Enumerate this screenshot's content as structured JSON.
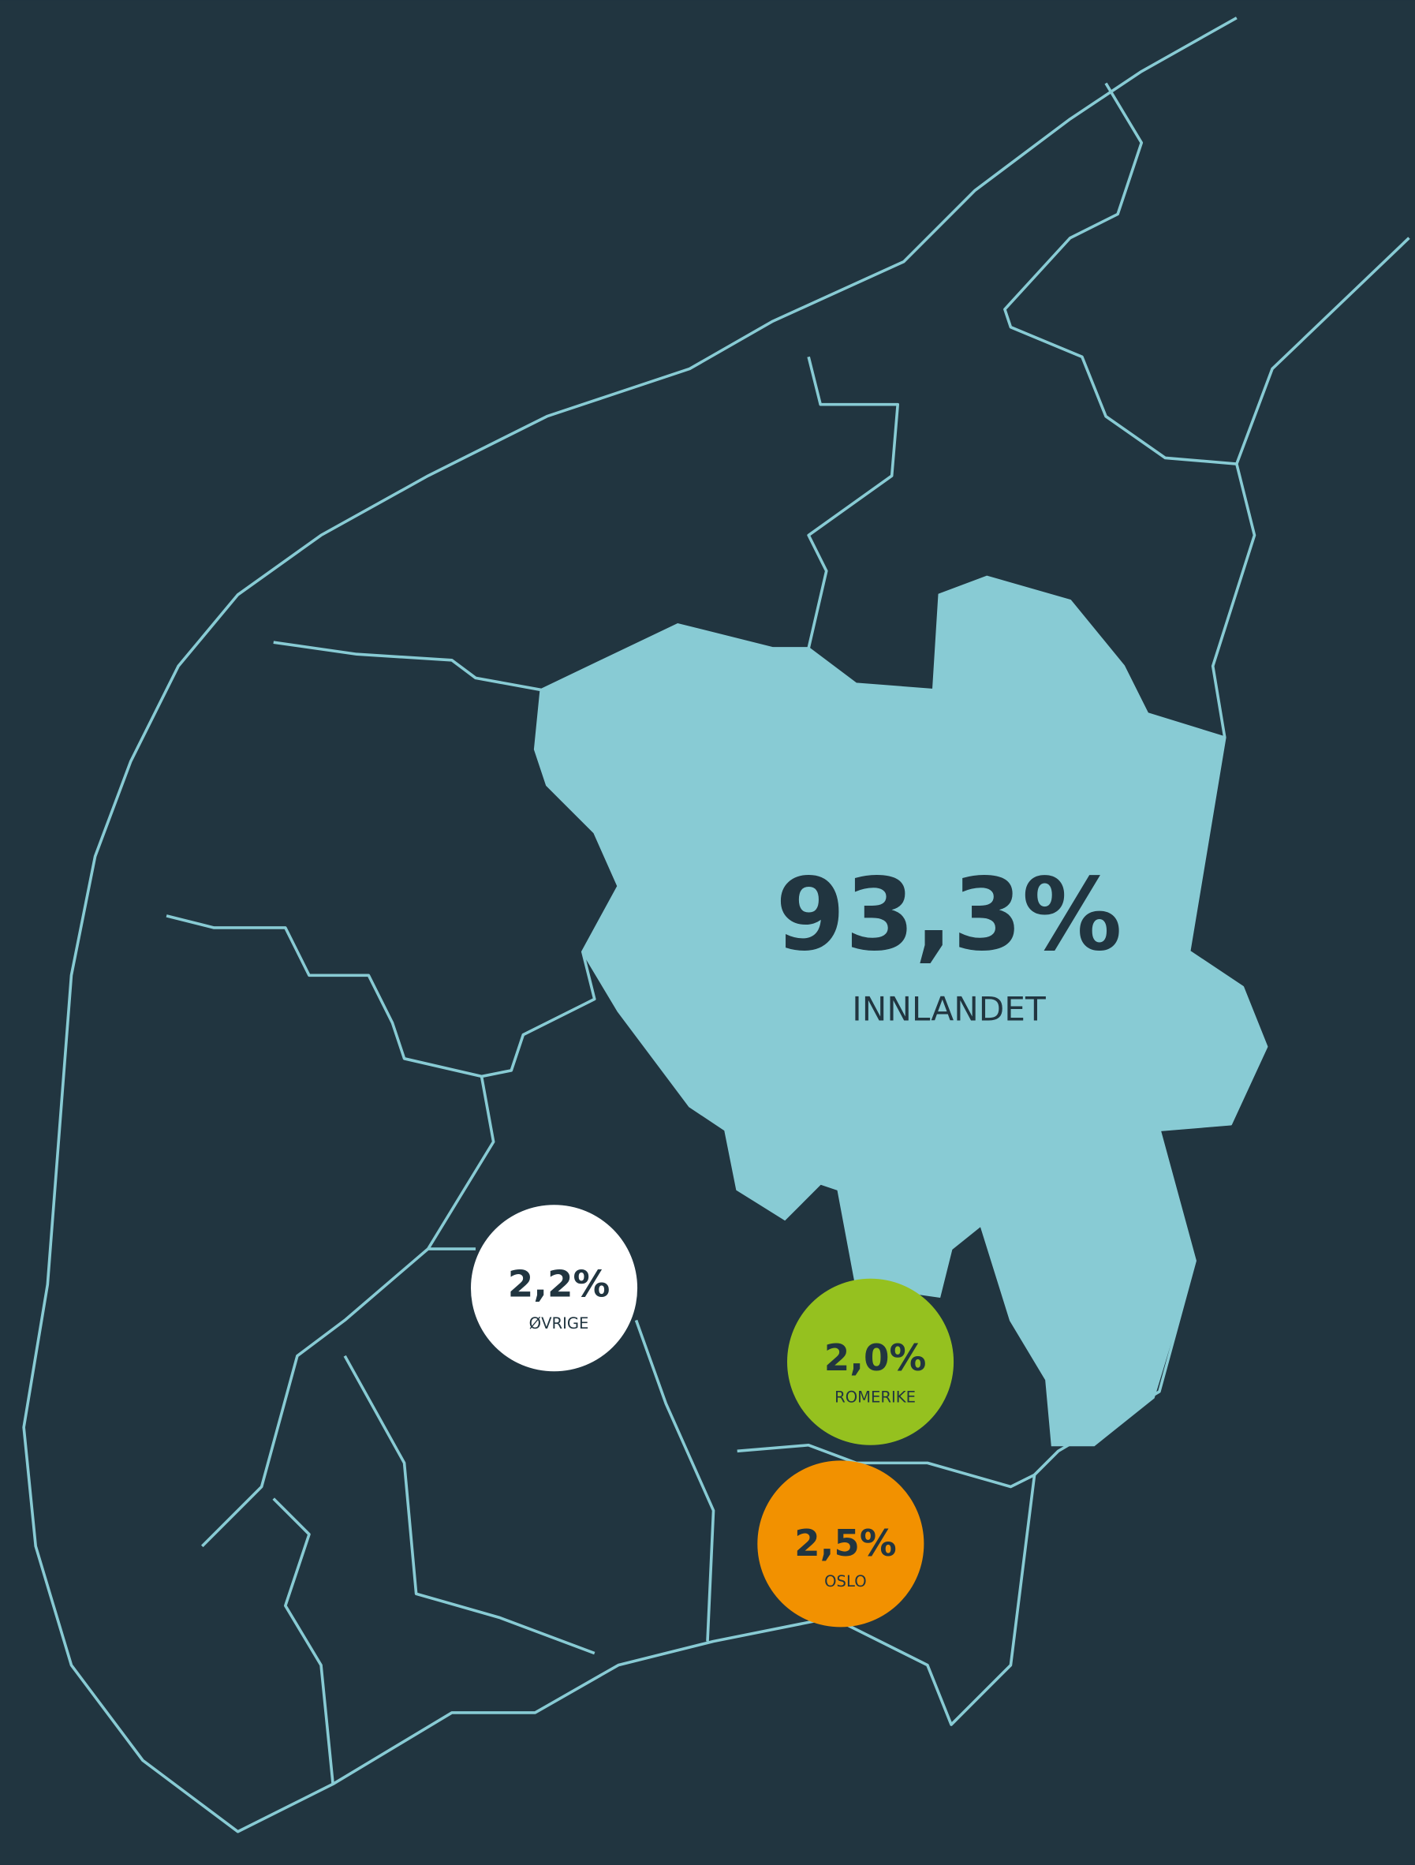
{
  "regions": [
    {
      "name": "INNLANDET",
      "value": "93,3%"
    },
    {
      "name": "ØVRIGE",
      "value": "2,2%"
    },
    {
      "name": "ROMERIKE",
      "value": "2,0%"
    },
    {
      "name": "OSLO",
      "value": "2,5%"
    }
  ]
}
